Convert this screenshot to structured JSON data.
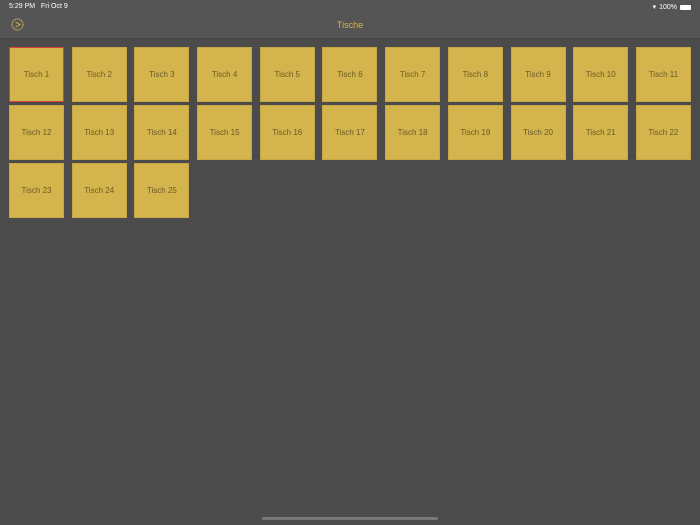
{
  "status": {
    "time": "5:29 PM",
    "date": "Fri Oct 9",
    "battery": "100%"
  },
  "nav": {
    "title": "Tische",
    "left_icon": "clock-play-icon"
  },
  "colors": {
    "accent": "#d4b44c",
    "selected_border": "#d8413a",
    "background": "#4b4b4b"
  },
  "tables": [
    "Tisch 1",
    "Tisch 2",
    "Tisch 3",
    "Tisch 4",
    "Tisch 5",
    "Tisch 6",
    "Tisch 7",
    "Tisch 8",
    "Tisch 9",
    "Tisch 10",
    "Tisch 11",
    "Tisch 12",
    "Tisch 13",
    "Tisch 14",
    "Tisch 15",
    "Tisch 16",
    "Tisch 17",
    "Tisch 18",
    "Tisch 19",
    "Tisch 20",
    "Tisch 21",
    "Tisch 22",
    "Tisch 23",
    "Tisch 24",
    "Tisch 25"
  ],
  "selected_index": 0
}
